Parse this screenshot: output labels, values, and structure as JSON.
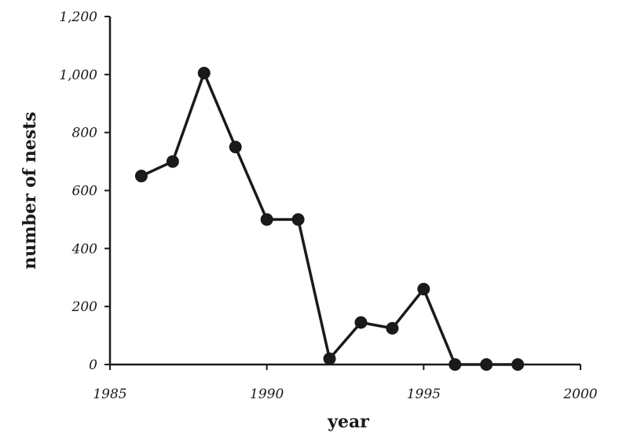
{
  "chart_data": {
    "type": "line",
    "title": "",
    "xlabel": "year",
    "ylabel": "number of nests",
    "xlim": [
      1985,
      2000
    ],
    "ylim": [
      0,
      1200
    ],
    "xticks": [
      1985,
      1990,
      1995,
      2000
    ],
    "yticks": [
      0,
      200,
      400,
      600,
      800,
      1000,
      1200
    ],
    "xtick_labels": [
      "1985",
      "1990",
      "1995",
      "2000"
    ],
    "ytick_labels": [
      "0",
      "200",
      "400",
      "600",
      "800",
      "1,000",
      "1,200"
    ],
    "grid": false,
    "series": [
      {
        "x": [
          1986,
          1987,
          1988,
          1989,
          1990,
          1991,
          1992,
          1993,
          1994,
          1995,
          1996,
          1997,
          1998
        ],
        "y": [
          650,
          700,
          1005,
          750,
          500,
          500,
          20,
          145,
          125,
          260,
          0,
          0,
          0
        ]
      }
    ],
    "colors": {
      "line": "#1a1a1a",
      "marker": "#1a1a1a",
      "axis": "#1a1a1a"
    }
  }
}
